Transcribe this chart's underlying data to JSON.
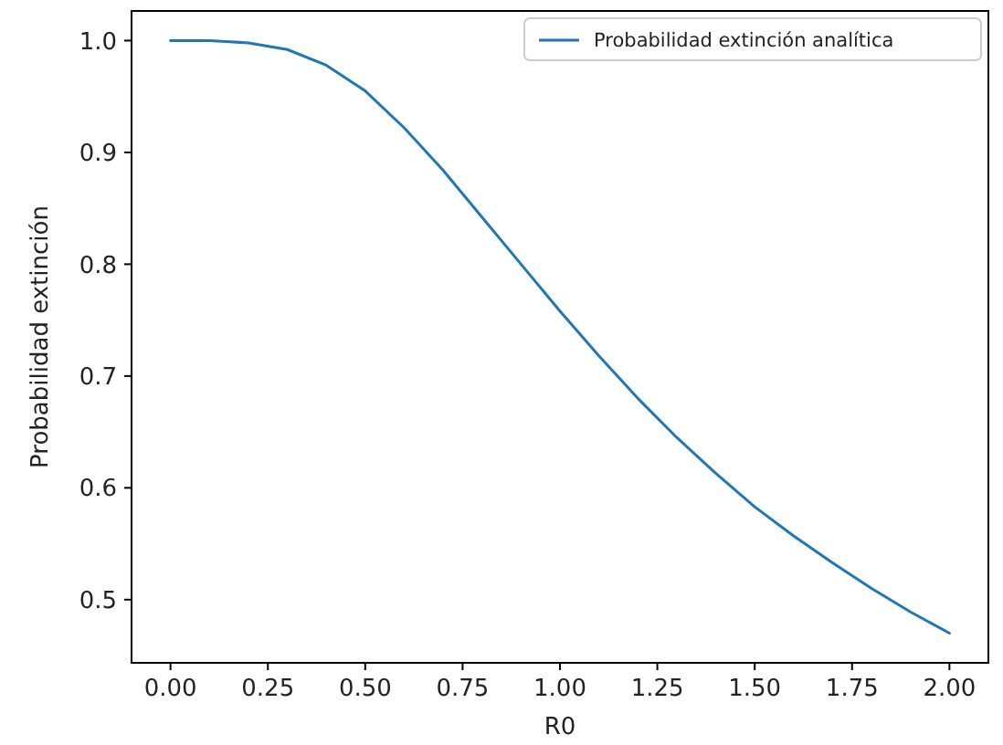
{
  "chart_data": {
    "type": "line",
    "xlabel": "R0",
    "ylabel": "Probabilidad extinción",
    "x": [
      0,
      0.1,
      0.2,
      0.3,
      0.4,
      0.5,
      0.6,
      0.7,
      0.8,
      0.9,
      1.0,
      1.1,
      1.2,
      1.3,
      1.4,
      1.5,
      1.6,
      1.7,
      1.8,
      1.9,
      2.0
    ],
    "series": [
      {
        "name": "Probabilidad extinción analítica",
        "color": "#1f77b4",
        "values": [
          1.0,
          1.0,
          0.998,
          0.992,
          0.978,
          0.955,
          0.922,
          0.884,
          0.842,
          0.8,
          0.758,
          0.718,
          0.68,
          0.645,
          0.613,
          0.583,
          0.557,
          0.533,
          0.51,
          0.489,
          0.47
        ]
      }
    ],
    "xlim": [
      -0.1,
      2.1
    ],
    "xticks": [
      {
        "value": 0,
        "label": "0.00"
      },
      {
        "value": 0.25,
        "label": "0.25"
      },
      {
        "value": 0.5,
        "label": "0.50"
      },
      {
        "value": 0.75,
        "label": "0.75"
      },
      {
        "value": 1,
        "label": "1.00"
      },
      {
        "value": 1.25,
        "label": "1.25"
      },
      {
        "value": 1.5,
        "label": "1.50"
      },
      {
        "value": 1.75,
        "label": "1.75"
      },
      {
        "value": 2,
        "label": "2.00"
      }
    ],
    "ylim": [
      0.4435,
      1.0265
    ],
    "yticks": [
      {
        "value": 0.5,
        "label": "0.5"
      },
      {
        "value": 0.6,
        "label": "0.6"
      },
      {
        "value": 0.7,
        "label": "0.7"
      },
      {
        "value": 0.8,
        "label": "0.8"
      },
      {
        "value": 0.9,
        "label": "0.9"
      },
      {
        "value": 1.0,
        "label": "1.0"
      }
    ],
    "legend": "top right",
    "grid": false,
    "marker": "none",
    "line_style": "solid"
  }
}
